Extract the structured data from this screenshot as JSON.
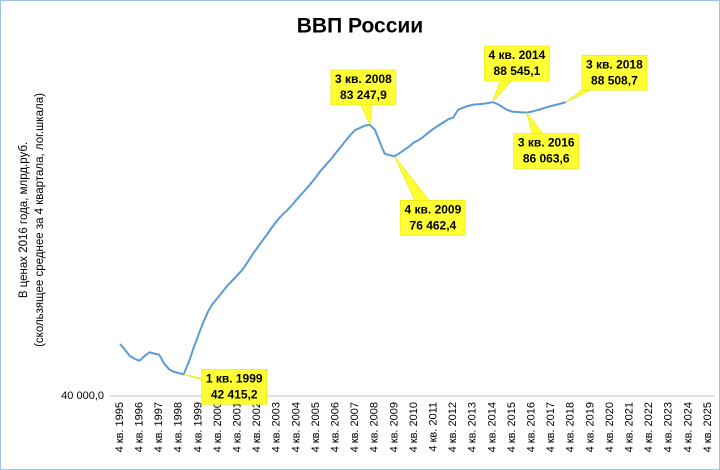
{
  "chart_data": {
    "type": "line",
    "title": "ВВП России",
    "ylabel": [
      "В ценах 2016 года, млрд.руб.",
      "(скользящее среднее за 4 квартала, лог.шкала)"
    ],
    "log_scale": true,
    "ylim": [
      40000,
      105000
    ],
    "yticks": [
      {
        "value": 40000,
        "label": "40 000,0"
      }
    ],
    "categories": [
      "4 кв. 1995",
      null,
      null,
      null,
      "4 кв. 1996",
      null,
      null,
      null,
      "4 кв. 1997",
      null,
      null,
      null,
      "4 кв. 1998",
      null,
      null,
      null,
      "4 кв. 1999",
      null,
      null,
      null,
      "4 кв. 2000",
      null,
      null,
      null,
      "4 кв. 2001",
      null,
      null,
      null,
      "4 кв. 2002",
      null,
      null,
      null,
      "4 кв. 2003",
      null,
      null,
      null,
      "4 кв. 2004",
      null,
      null,
      null,
      "4 кв. 2005",
      null,
      null,
      null,
      "4 кв. 2006",
      null,
      null,
      null,
      "4 кв. 2007",
      null,
      null,
      null,
      "4 кв. 2008",
      null,
      null,
      null,
      "4 кв. 2009",
      null,
      null,
      null,
      "4 кв. 2010",
      null,
      null,
      null,
      "4 кв. 2011",
      null,
      null,
      null,
      "4 кв. 2012",
      null,
      null,
      null,
      "4 кв. 2013",
      null,
      null,
      null,
      "4 кв. 2014",
      null,
      null,
      null,
      "4 кв. 2015",
      null,
      null,
      null,
      "4 кв. 2016",
      null,
      null,
      null,
      "4 кв. 2017",
      null,
      null,
      null,
      "4 кв. 2018",
      null,
      null,
      null,
      "4 кв. 2019",
      null,
      null,
      null,
      "4 кв. 2020",
      null,
      null,
      null,
      "4 кв. 2021",
      null,
      null,
      null,
      "4 кв. 2022",
      null,
      null,
      null,
      "4 кв. 2023",
      null,
      null,
      null,
      "4 кв. 2024",
      null,
      null,
      null,
      "4 кв. 2025"
    ],
    "series": [
      {
        "name": "ВВП",
        "color": "#5b9bd5",
        "values": [
          46040,
          45350,
          44570,
          44220,
          44000,
          44570,
          45010,
          44860,
          44720,
          43670,
          43000,
          42700,
          42550,
          42415.2,
          43800,
          45500,
          47200,
          48800,
          50300,
          51400,
          52200,
          53100,
          54000,
          54700,
          55500,
          56300,
          57400,
          58600,
          59700,
          60800,
          61900,
          63100,
          64200,
          65200,
          66000,
          66900,
          68000,
          69000,
          70000,
          71100,
          72300,
          73600,
          74700,
          75800,
          77100,
          78400,
          79700,
          81000,
          82100,
          82600,
          83100,
          83247.9,
          82200,
          79500,
          77000,
          76700,
          76462.4,
          77100,
          77800,
          78500,
          79400,
          79900,
          80700,
          81600,
          82400,
          83100,
          83800,
          84500,
          84900,
          86700,
          87200,
          87600,
          87900,
          88000,
          88100,
          88300,
          88545.1,
          88100,
          87400,
          86700,
          86300,
          86200,
          86100,
          86063.6,
          86300,
          86600,
          86900,
          87300,
          87600,
          87900,
          88200,
          88508.7,
          null,
          null,
          null,
          null,
          null,
          null,
          null,
          null,
          null,
          null,
          null,
          null,
          null,
          null,
          null,
          null,
          null,
          null,
          null,
          null,
          null,
          null,
          null,
          null,
          null,
          null,
          null,
          null,
          null
        ],
        "point_labels": [
          null,
          null,
          null,
          null,
          null,
          null,
          null,
          null,
          null,
          null,
          null,
          null,
          null,
          "1 кв. 1999",
          null,
          null,
          null,
          null,
          null,
          null,
          null,
          null,
          null,
          null,
          null,
          null,
          null,
          null,
          null,
          null,
          null,
          null,
          null,
          null,
          null,
          null,
          null,
          null,
          null,
          null,
          null,
          null,
          null,
          null,
          null,
          null,
          null,
          null,
          null,
          null,
          null,
          "3 кв. 2008",
          null,
          null,
          null,
          null,
          "4 кв. 2009",
          null,
          null,
          null,
          null,
          null,
          null,
          null,
          null,
          null,
          null,
          null,
          null,
          null,
          null,
          null,
          null,
          null,
          null,
          null,
          "4 кв. 2014",
          null,
          null,
          null,
          null,
          null,
          null,
          "3 кв. 2016",
          null,
          null,
          null,
          null,
          null,
          null,
          null,
          "3 кв. 2018",
          null,
          null,
          null,
          null,
          null,
          null,
          null,
          null,
          null,
          null,
          null,
          null,
          null,
          null,
          null,
          null,
          null,
          null,
          null,
          null,
          null,
          null,
          null,
          null,
          null,
          null,
          null,
          null,
          null
        ],
        "value_labels": [
          null,
          null,
          null,
          null,
          null,
          null,
          null,
          null,
          null,
          null,
          null,
          null,
          null,
          "42 415,2",
          null,
          null,
          null,
          null,
          null,
          null,
          null,
          null,
          null,
          null,
          null,
          null,
          null,
          null,
          null,
          null,
          null,
          null,
          null,
          null,
          null,
          null,
          null,
          null,
          null,
          null,
          null,
          null,
          null,
          null,
          null,
          null,
          null,
          null,
          null,
          null,
          null,
          "83 247,9",
          null,
          null,
          null,
          null,
          "76 462,4",
          null,
          null,
          null,
          null,
          null,
          null,
          null,
          null,
          null,
          null,
          null,
          null,
          null,
          null,
          null,
          null,
          null,
          null,
          null,
          "88 545,1",
          null,
          null,
          null,
          null,
          null,
          null,
          "86 063,6",
          null,
          null,
          null,
          null,
          null,
          null,
          null,
          "88 508,7",
          null,
          null,
          null,
          null,
          null,
          null,
          null,
          null,
          null,
          null,
          null,
          null,
          null,
          null,
          null,
          null,
          null,
          null,
          null,
          null,
          null,
          null,
          null,
          null,
          null,
          null,
          null,
          null,
          null
        ]
      }
    ]
  }
}
